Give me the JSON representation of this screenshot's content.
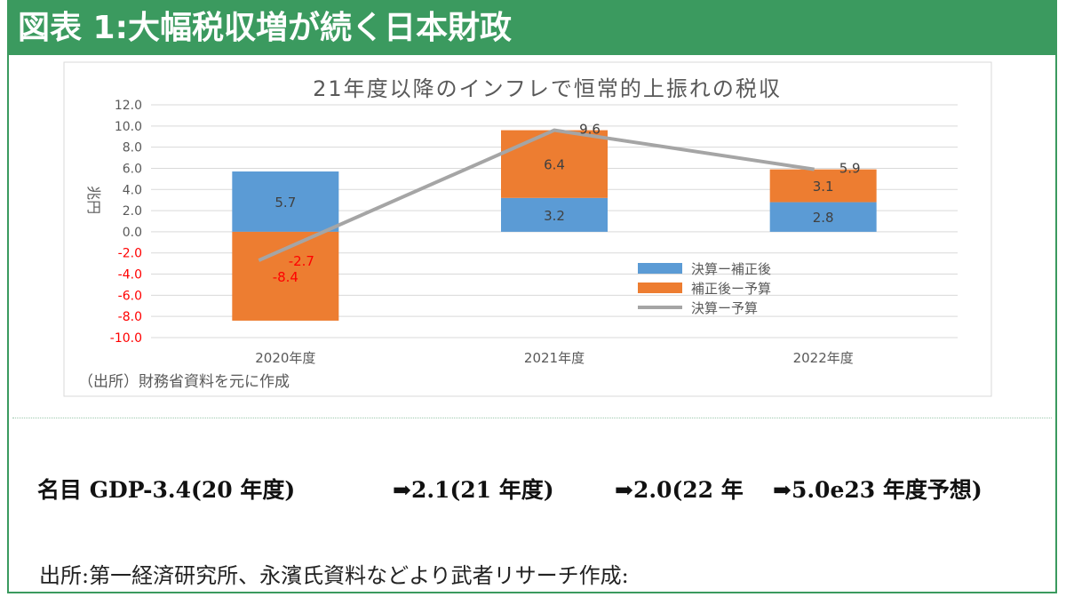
{
  "header": {
    "title": "図表 1:大幅税収増が続く日本財政"
  },
  "colors": {
    "header_green": "#3b9a5f",
    "blue": "#5b9bd5",
    "orange": "#ed7d31",
    "gray": "#a5a5a5",
    "negative_red": "#ff0000"
  },
  "chart_data": {
    "type": "bar",
    "title": "21年度以降のインフレで恒常的上振れの税収",
    "ylabel": "兆円",
    "xlabel": "",
    "categories": [
      "2020年度",
      "2021年度",
      "2022年度"
    ],
    "series": [
      {
        "name": "決算ー補正後",
        "kind": "stacked-bar",
        "values": [
          5.7,
          3.2,
          2.8
        ],
        "color": "#5b9bd5"
      },
      {
        "name": "補正後ー予算",
        "kind": "stacked-bar",
        "values": [
          -8.4,
          6.4,
          3.1
        ],
        "color": "#ed7d31"
      },
      {
        "name": "決算ー予算",
        "kind": "line",
        "values": [
          -2.7,
          9.6,
          5.9
        ],
        "color": "#a5a5a5"
      }
    ],
    "ylim": [
      -10.0,
      12.0
    ],
    "yticks": [
      "12.0",
      "10.0",
      "8.0",
      "6.0",
      "4.0",
      "2.0",
      "0.0",
      "-2.0",
      "-4.0",
      "-6.0",
      "-8.0",
      "-10.0"
    ],
    "grid": true,
    "legend_position": "right",
    "source": "（出所）財務省資料を元に作成"
  },
  "gdp": {
    "part1": "名目 GDP-3.4(20 年度)",
    "part2": "➡2.1(21 年度)",
    "part3": "➡2.0(22 年",
    "part4": "➡5.0e23 年度予想)"
  },
  "footer": {
    "source": "出所:第一経済研究所、永濱氏資料などより武者リサーチ作成:"
  }
}
